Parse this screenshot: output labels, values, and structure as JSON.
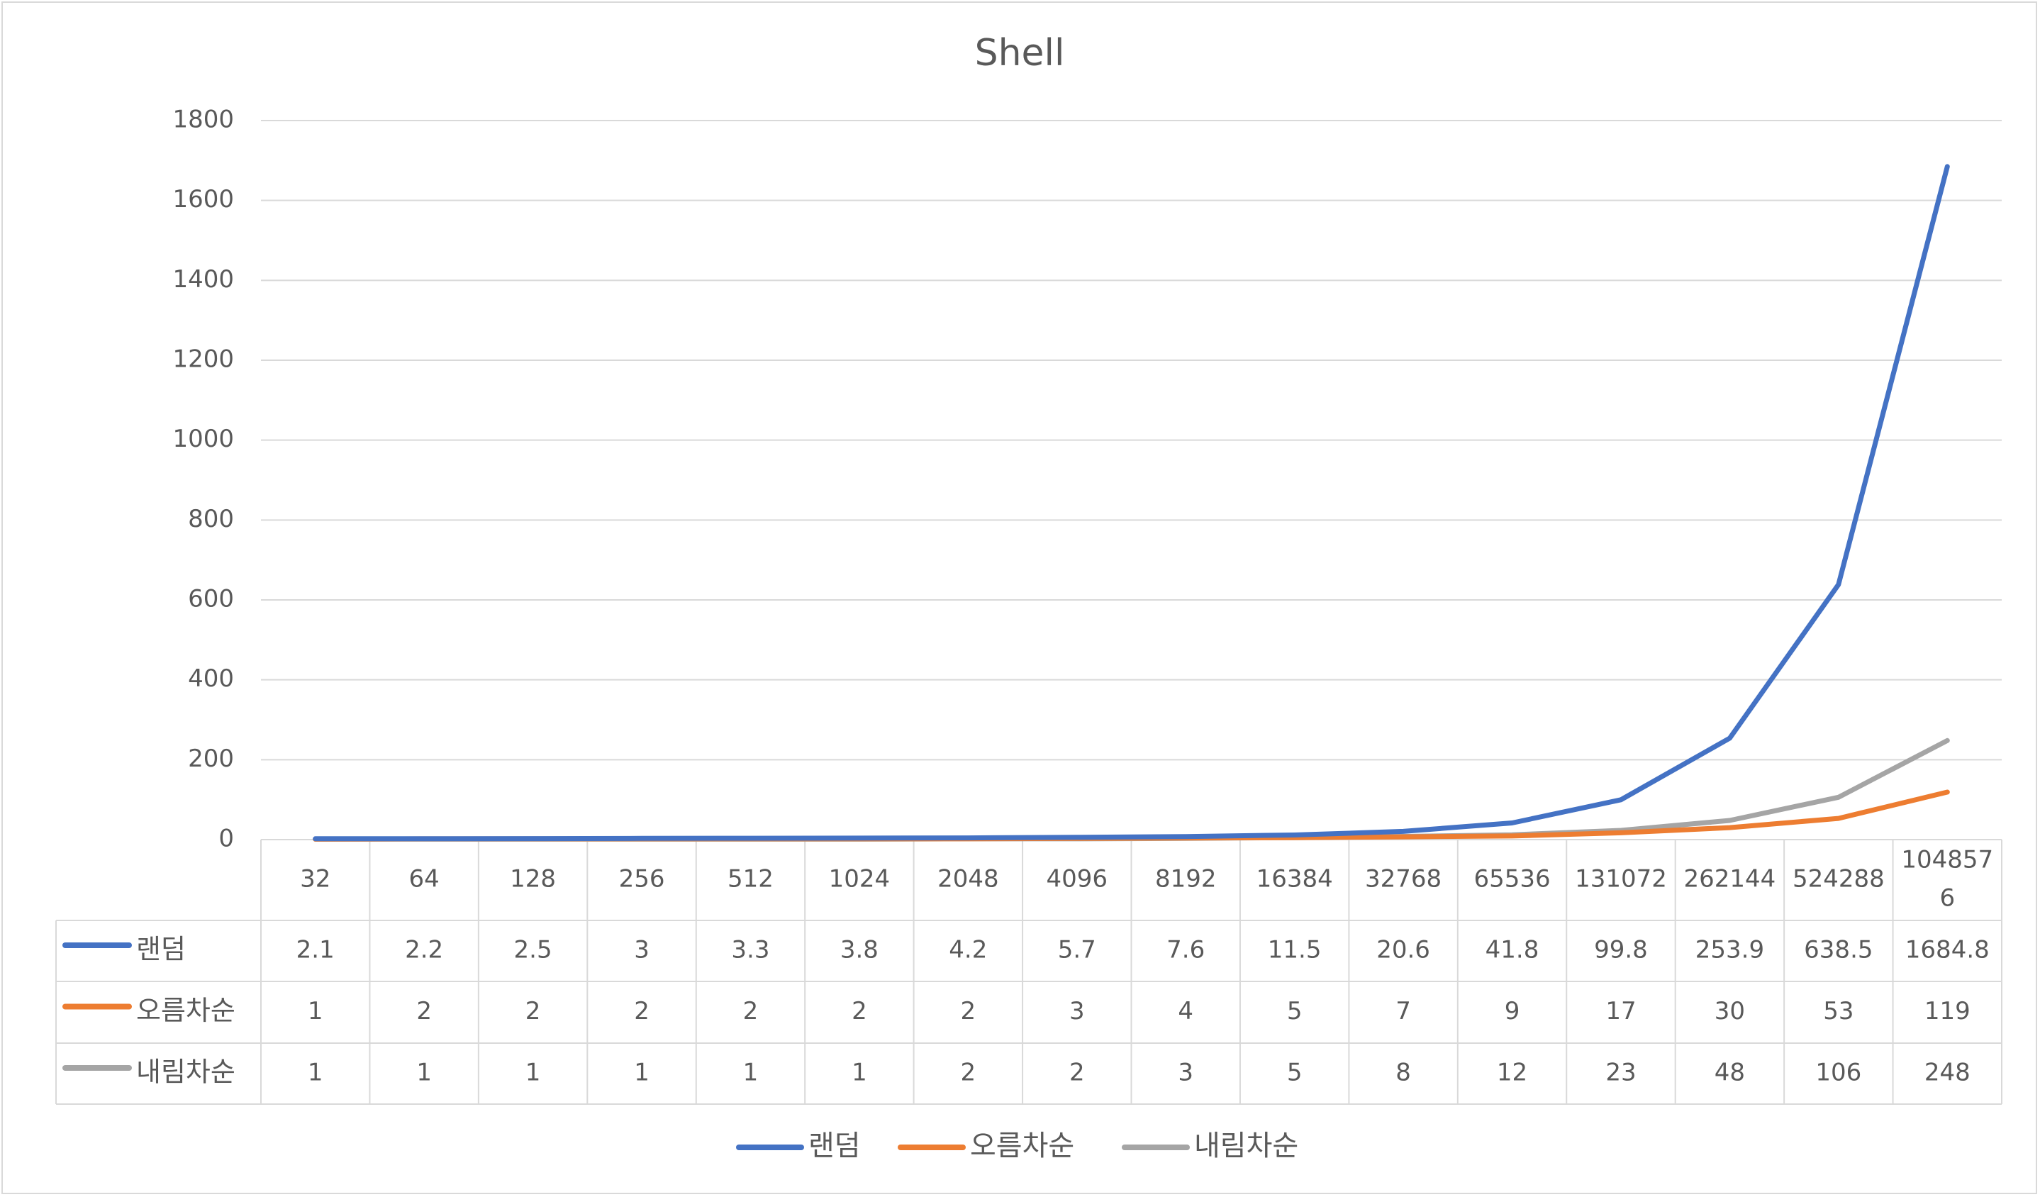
{
  "chart_data": {
    "type": "line",
    "title": "Shell",
    "categories": [
      "32",
      "64",
      "128",
      "256",
      "512",
      "1024",
      "2048",
      "4096",
      "8192",
      "16384",
      "32768",
      "65536",
      "131072",
      "262144",
      "524288",
      "1048576"
    ],
    "category_display": [
      [
        "32"
      ],
      [
        "64"
      ],
      [
        "128"
      ],
      [
        "256"
      ],
      [
        "512"
      ],
      [
        "1024"
      ],
      [
        "2048"
      ],
      [
        "4096"
      ],
      [
        "8192"
      ],
      [
        "16384"
      ],
      [
        "32768"
      ],
      [
        "65536"
      ],
      [
        "131072"
      ],
      [
        "262144"
      ],
      [
        "524288"
      ],
      [
        "104857",
        "6"
      ]
    ],
    "ylim": [
      0,
      1800
    ],
    "yticks": [
      "0",
      "200",
      "400",
      "600",
      "800",
      "1000",
      "1200",
      "1400",
      "1600",
      "1800"
    ],
    "grid": true,
    "legend_position": "bottom",
    "series": [
      {
        "name": "랜덤",
        "color": "#4472c4",
        "values": [
          2.1,
          2.2,
          2.5,
          3,
          3.3,
          3.8,
          4.2,
          5.7,
          7.6,
          11.5,
          20.6,
          41.8,
          99.8,
          253.9,
          638.5,
          1684.8
        ],
        "labels": [
          "2.1",
          "2.2",
          "2.5",
          "3",
          "3.3",
          "3.8",
          "4.2",
          "5.7",
          "7.6",
          "11.5",
          "20.6",
          "41.8",
          "99.8",
          "253.9",
          "638.5",
          "1684.8"
        ]
      },
      {
        "name": "오름차순",
        "color": "#ed7d31",
        "values": [
          1,
          2,
          2,
          2,
          2,
          2,
          2,
          3,
          4,
          5,
          7,
          9,
          17,
          30,
          53,
          119
        ],
        "labels": [
          "1",
          "2",
          "2",
          "2",
          "2",
          "2",
          "2",
          "3",
          "4",
          "5",
          "7",
          "9",
          "17",
          "30",
          "53",
          "119"
        ]
      },
      {
        "name": "내림차순",
        "color": "#a5a5a5",
        "values": [
          1,
          1,
          1,
          1,
          1,
          1,
          2,
          2,
          3,
          5,
          8,
          12,
          23,
          48,
          106,
          248
        ],
        "labels": [
          "1",
          "1",
          "1",
          "1",
          "1",
          "1",
          "2",
          "2",
          "3",
          "5",
          "8",
          "12",
          "23",
          "48",
          "106",
          "248"
        ]
      }
    ]
  }
}
